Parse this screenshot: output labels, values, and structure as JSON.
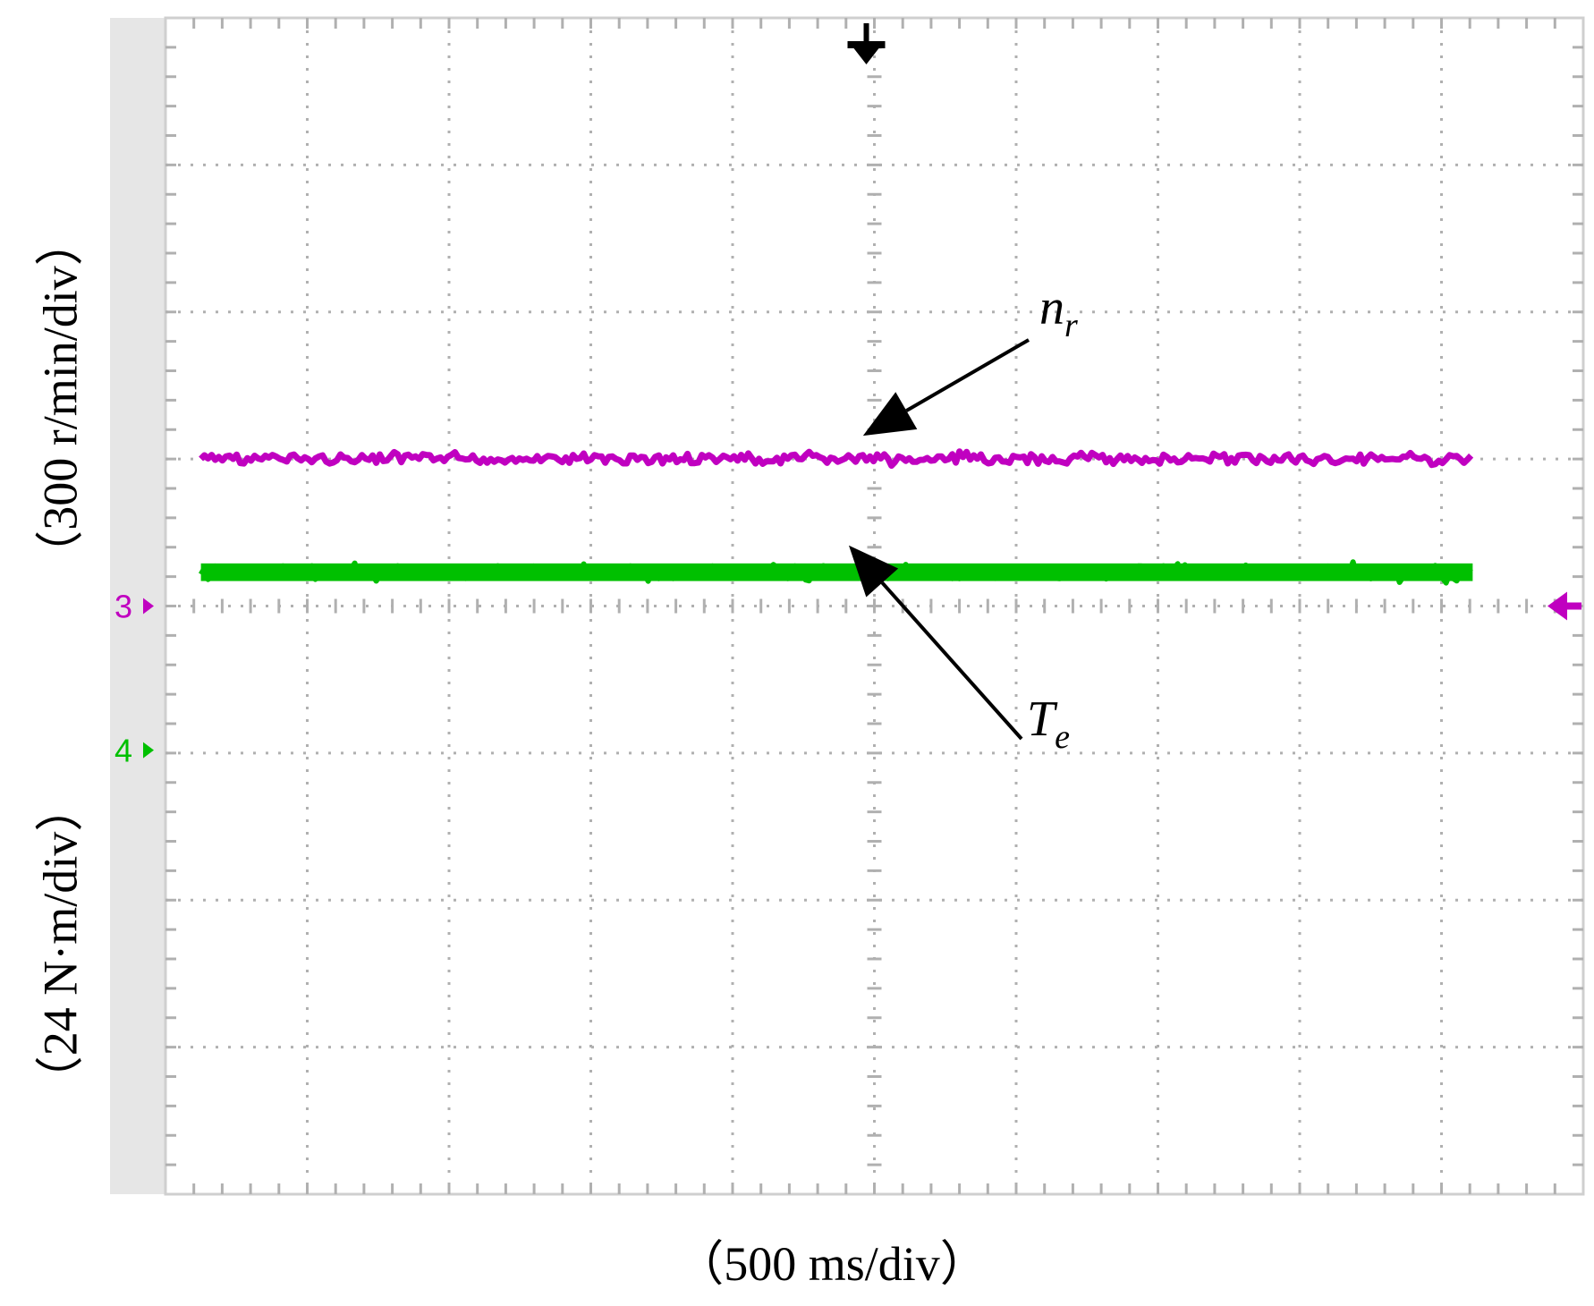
{
  "chart_data": {
    "type": "line",
    "title": "",
    "xlabel": "（500 ms/div）",
    "ylabels": [
      "（300 r/min/div）",
      "（24 N·m/div）"
    ],
    "x_divisions": 10,
    "y_divisions": 8,
    "grid": true,
    "xlim_ms": [
      0,
      5000
    ],
    "trigger_marker": "down-arrow",
    "series": [
      {
        "name": "n",
        "subscript": "r",
        "channel_label": "3",
        "color": "#c000c0",
        "scale": "300 r/min/div",
        "offset_div": 1.0,
        "ripple_div": 0.06,
        "t_start_ms": 125,
        "t_end_ms": 4610,
        "annotation_tip_ms": 2460
      },
      {
        "name": "T",
        "subscript": "e",
        "channel_label": "4",
        "color": "#00c000",
        "scale": "24 N·m/div",
        "offset_div": 0.23,
        "ripple_div": 0.08,
        "band_div": 0.12,
        "t_start_ms": 125,
        "t_end_ms": 4610,
        "annotation_tip_ms": 2410
      }
    ]
  },
  "colors": {
    "frame": "#cfcfcf",
    "grid": "#b0b0b0",
    "left_strip": "#e6e6e6",
    "arrow": "#000000"
  }
}
